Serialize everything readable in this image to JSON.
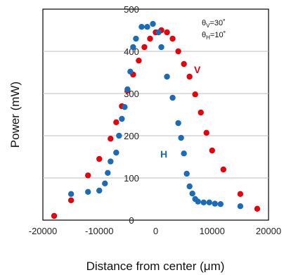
{
  "chart_data": {
    "type": "scatter",
    "xlabel": "Distance from center (μm)",
    "ylabel": "Power (mW)",
    "xlim": [
      -20000,
      20000
    ],
    "ylim": [
      0,
      500
    ],
    "x_ticks": [
      -20000,
      -10000,
      0,
      10000,
      20000
    ],
    "x_tick_labels": [
      "-20000",
      "-10000",
      "0",
      "10000",
      "20000"
    ],
    "y_ticks": [
      0,
      100,
      200,
      300,
      400,
      500
    ],
    "y_tick_labels": [
      "0",
      "100",
      "200",
      "300",
      "400",
      "500"
    ],
    "grid": "horizontal",
    "annotations": {
      "theta_v": "θV=30˚",
      "theta_h": "θH=10˚",
      "theta_v_main": "θ",
      "theta_v_sub": "V",
      "theta_v_rest": "=30˚",
      "theta_h_main": "θ",
      "theta_h_sub": "H",
      "theta_h_rest": "=10˚"
    },
    "series": [
      {
        "name": "V",
        "color": "#e8000b",
        "points": [
          [
            -18000,
            10
          ],
          [
            -15000,
            47
          ],
          [
            -12000,
            106
          ],
          [
            -10000,
            145
          ],
          [
            -8000,
            193
          ],
          [
            -7000,
            232
          ],
          [
            -6000,
            270
          ],
          [
            -5000,
            307
          ],
          [
            -4000,
            345
          ],
          [
            -3000,
            378
          ],
          [
            -2000,
            410
          ],
          [
            -1000,
            430
          ],
          [
            0,
            445
          ],
          [
            1000,
            450
          ],
          [
            2000,
            445
          ],
          [
            3000,
            430
          ],
          [
            4000,
            400
          ],
          [
            5000,
            370
          ],
          [
            6000,
            340
          ],
          [
            7000,
            298
          ],
          [
            8000,
            255
          ],
          [
            9000,
            207
          ],
          [
            10000,
            165
          ],
          [
            12000,
            120
          ],
          [
            15000,
            62
          ],
          [
            18000,
            27
          ]
        ]
      },
      {
        "name": "H",
        "color": "#1a6bb8",
        "points": [
          [
            -15000,
            62
          ],
          [
            -12000,
            67
          ],
          [
            -10000,
            70
          ],
          [
            -9000,
            87
          ],
          [
            -8500,
            112
          ],
          [
            -8000,
            139
          ],
          [
            -7000,
            160
          ],
          [
            -6500,
            200
          ],
          [
            -6000,
            240
          ],
          [
            -5500,
            268
          ],
          [
            -5000,
            310
          ],
          [
            -4500,
            352
          ],
          [
            -4000,
            410
          ],
          [
            -3500,
            430
          ],
          [
            -2500,
            458
          ],
          [
            -1500,
            458
          ],
          [
            -500,
            465
          ],
          [
            500,
            445
          ],
          [
            1000,
            410
          ],
          [
            2000,
            340
          ],
          [
            3000,
            290
          ],
          [
            4000,
            230
          ],
          [
            4500,
            195
          ],
          [
            5000,
            158
          ],
          [
            5500,
            110
          ],
          [
            6000,
            80
          ],
          [
            6500,
            63
          ],
          [
            7000,
            50
          ],
          [
            7500,
            44
          ],
          [
            8500,
            42
          ],
          [
            9500,
            42
          ],
          [
            10500,
            39
          ],
          [
            11500,
            38
          ],
          [
            15000,
            33
          ]
        ]
      }
    ],
    "series_labels": {
      "v": "V",
      "h": "H"
    }
  },
  "colors": {
    "v": "#e8000b",
    "h": "#1a6bb8",
    "grid": "#bdbdbd",
    "frame": "#000000"
  }
}
